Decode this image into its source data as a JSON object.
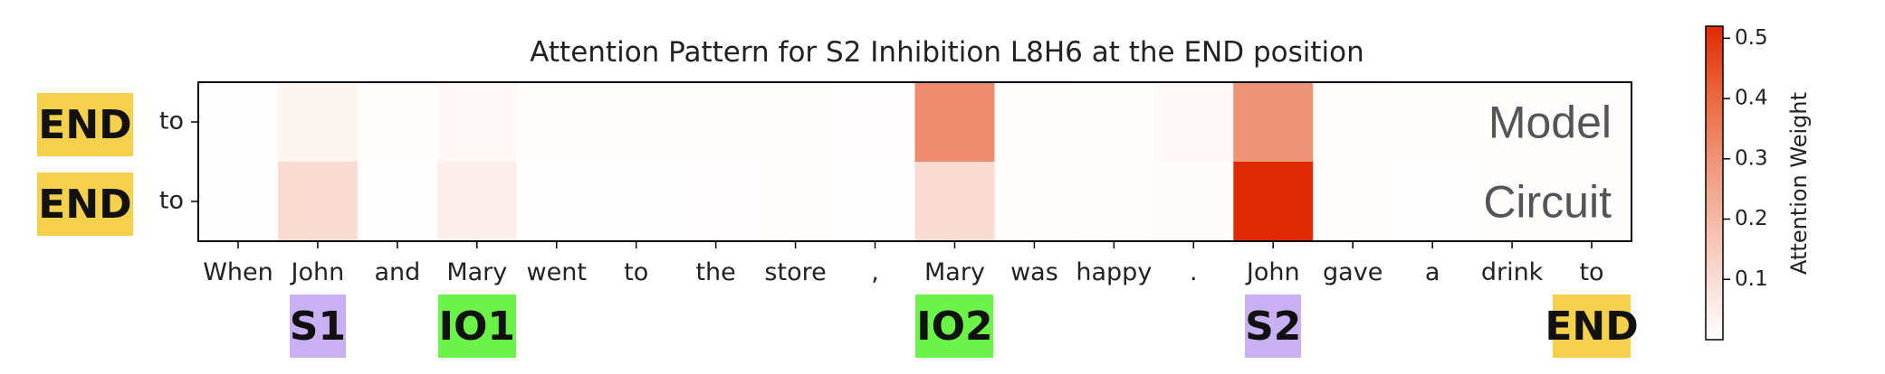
{
  "chart_data": {
    "type": "heatmap",
    "title": "Attention Pattern for S2 Inhibition L8H6 at the END position",
    "x_tokens": [
      "When",
      "John",
      "and",
      "Mary",
      "went",
      "to",
      "the",
      "store",
      ",",
      "Mary",
      "was",
      "happy",
      ".",
      "John",
      "gave",
      "a",
      "drink",
      "to"
    ],
    "rows": [
      {
        "label": "to",
        "name": "Model",
        "badge": "END",
        "values": [
          0.003,
          0.03,
          0.008,
          0.018,
          0.004,
          0.004,
          0.004,
          0.004,
          0.005,
          0.32,
          0.009,
          0.007,
          0.016,
          0.3,
          0.008,
          0.006,
          0.004,
          0.004
        ]
      },
      {
        "label": "to",
        "name": "Circuit",
        "badge": "END",
        "values": [
          0.002,
          0.1,
          0.003,
          0.045,
          0.002,
          0.003,
          0.005,
          0.007,
          0.003,
          0.1,
          0.004,
          0.006,
          0.012,
          0.52,
          0.004,
          0.002,
          0.004,
          0.004
        ]
      }
    ],
    "token_annotations": [
      {
        "token_index": 1,
        "label": "S1",
        "kind": "subject"
      },
      {
        "token_index": 3,
        "label": "IO1",
        "kind": "indirect-object"
      },
      {
        "token_index": 9,
        "label": "IO2",
        "kind": "indirect-object"
      },
      {
        "token_index": 13,
        "label": "S2",
        "kind": "subject"
      },
      {
        "token_index": 17,
        "label": "END",
        "kind": "end"
      }
    ],
    "colorbar": {
      "label": "Attention Weight",
      "range": [
        0,
        0.52
      ],
      "ticks": [
        "0.1",
        "0.2",
        "0.3",
        "0.4",
        "0.5"
      ],
      "colormap": "white-to-orange-red"
    },
    "colors": {
      "low": "#ffffff",
      "high": "#e63205",
      "end_badge": "#f5d04c",
      "subject_badge": "#c9b0f2",
      "io_badge": "#6bf34a",
      "row_name_text": "#555555"
    }
  }
}
